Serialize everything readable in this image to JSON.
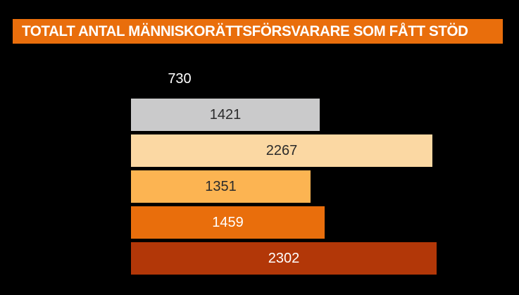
{
  "header": {
    "title": "TOTALT ANTAL MÄNNISKORÄTTSFÖRSVARARE SOM FÅTT STÖD"
  },
  "colors": {
    "background": "#000000",
    "banner": "#E96E0C",
    "title_text": "#FFFFFF"
  },
  "chart_data": {
    "type": "bar",
    "orientation": "horizontal",
    "title": "TOTALT ANTAL MÄNNISKORÄTTSFÖRSVARARE SOM FÅTT STÖD",
    "xlabel": "",
    "ylabel": "",
    "axes_visible": false,
    "grid": false,
    "legend": false,
    "value_labels_position": "inside-center",
    "values": [
      730,
      1421,
      2267,
      1351,
      1459,
      2302
    ],
    "bars": [
      {
        "value": 730,
        "label": "730",
        "color": "#000000",
        "label_color": "#FFFFFF"
      },
      {
        "value": 1421,
        "label": "1421",
        "color": "#CACACB",
        "label_color": "#2B2B2B"
      },
      {
        "value": 2267,
        "label": "2267",
        "color": "#FBD8A3",
        "label_color": "#2B2B2B"
      },
      {
        "value": 1351,
        "label": "1351",
        "color": "#FCB452",
        "label_color": "#2B2B2B"
      },
      {
        "value": 1459,
        "label": "1459",
        "color": "#E96E0C",
        "label_color": "#FFFFFF"
      },
      {
        "value": 2302,
        "label": "2302",
        "color": "#B23708",
        "label_color": "#FFFFFF"
      }
    ]
  }
}
